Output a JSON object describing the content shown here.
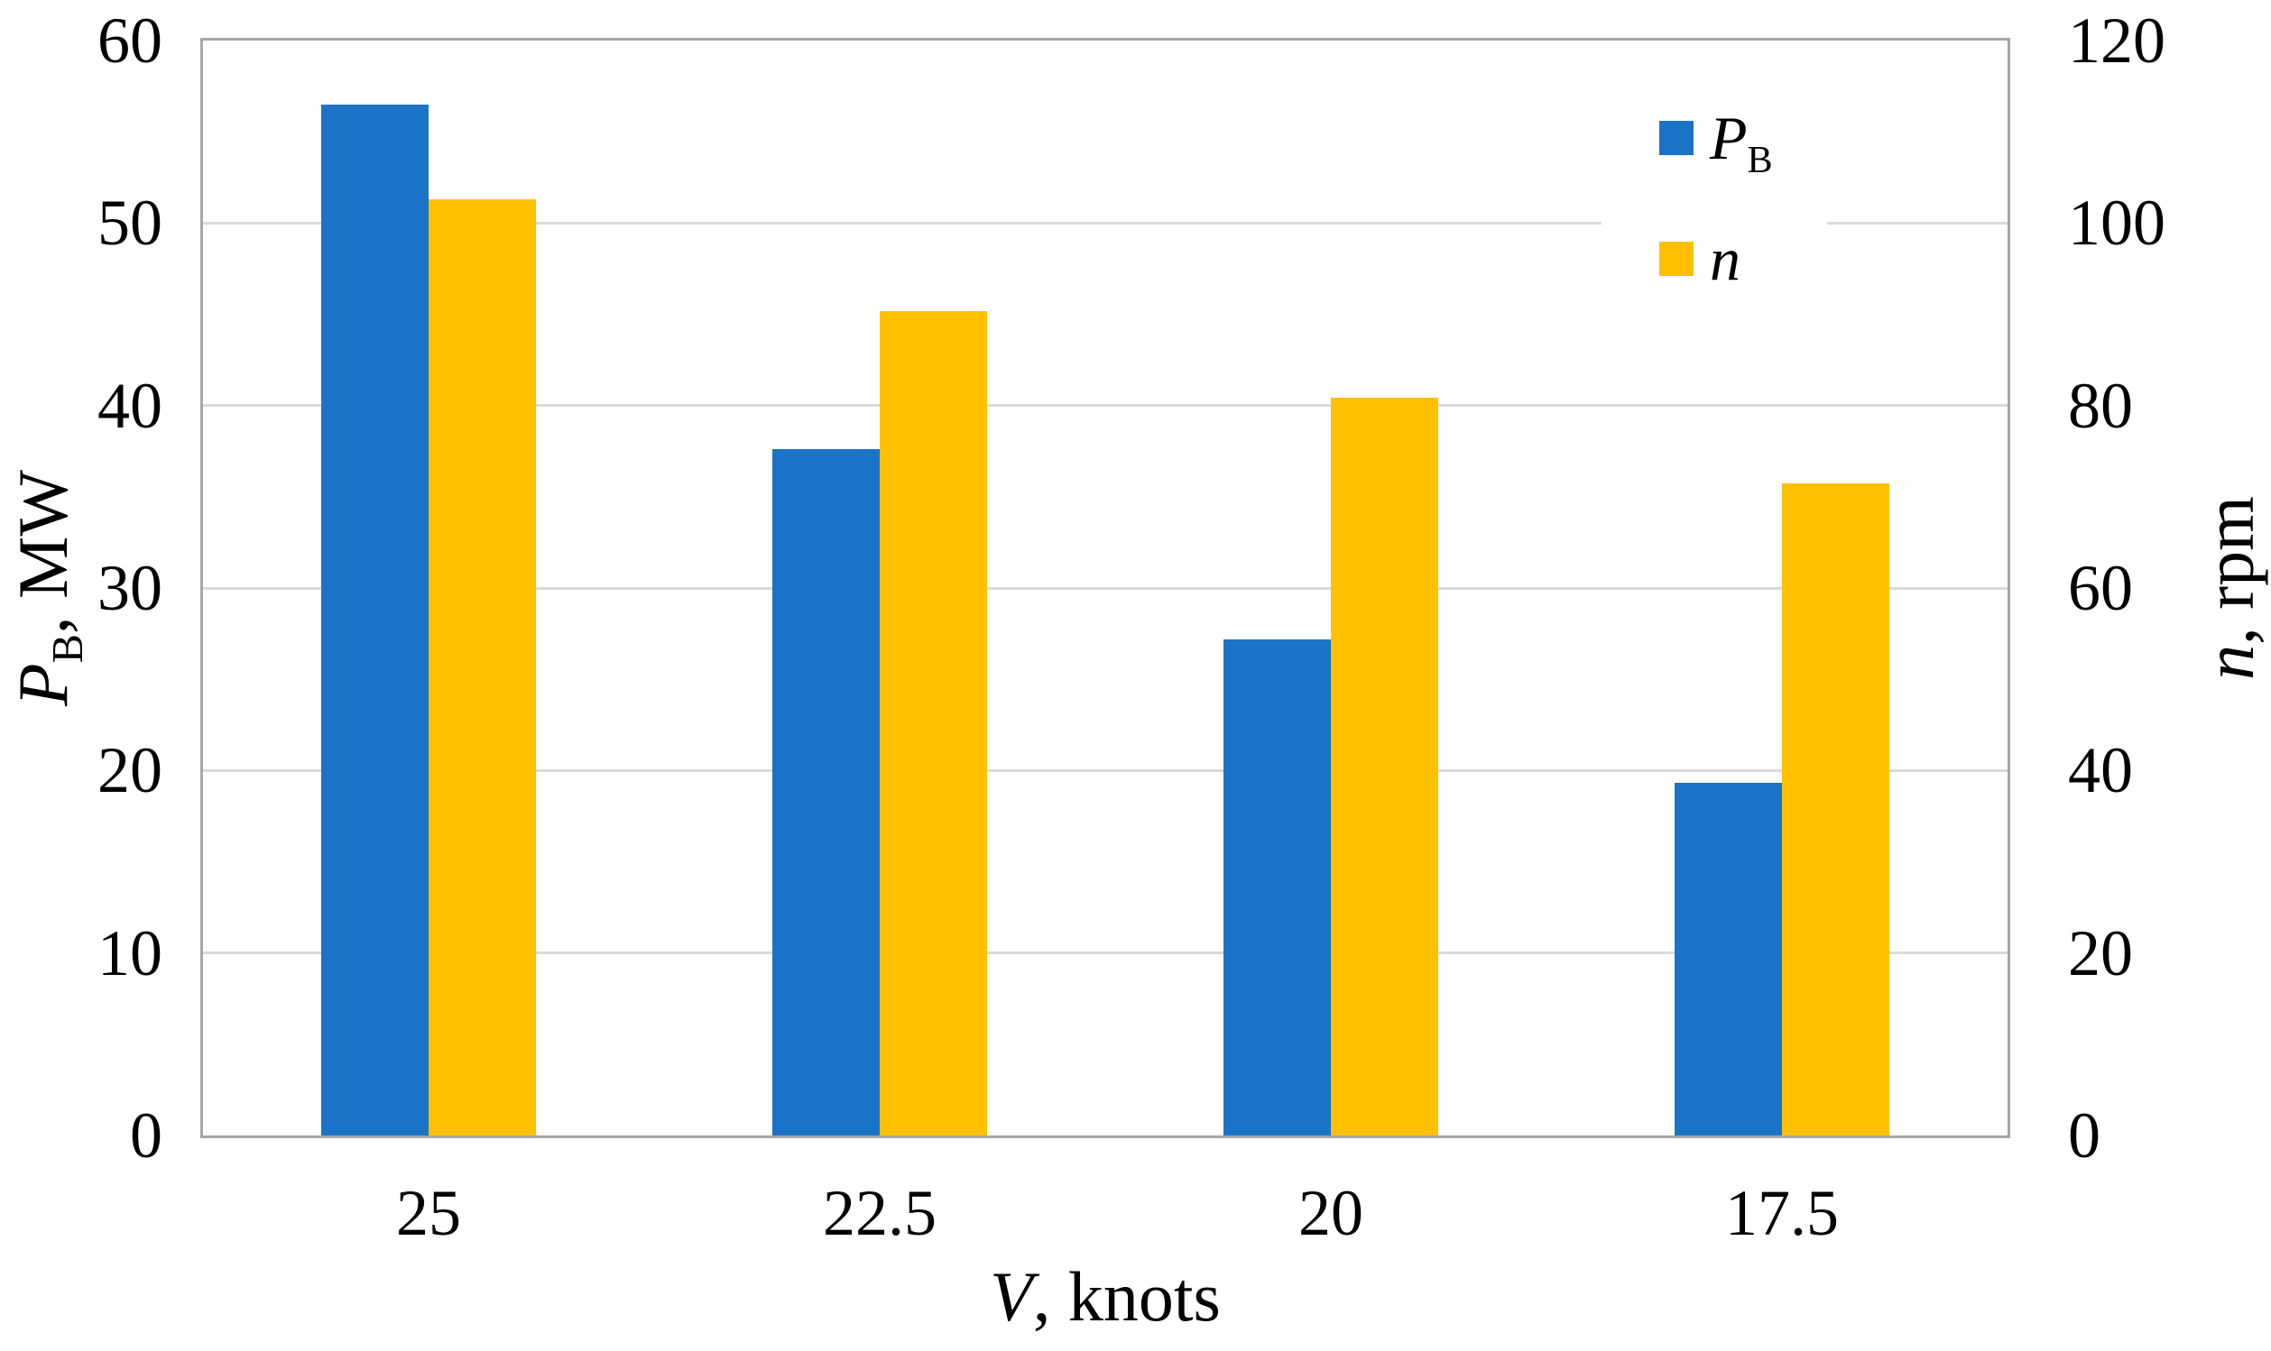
{
  "chart_data": {
    "type": "bar",
    "title": "",
    "categories": [
      "25",
      "22.5",
      "20",
      "17.5"
    ],
    "x_axis": {
      "label": "V, knots"
    },
    "left_axis": {
      "label": "P_B, MW",
      "min": 0,
      "max": 60,
      "ticks": [
        60,
        50,
        40,
        30,
        20,
        10,
        0
      ]
    },
    "right_axis": {
      "label": "n, rpm",
      "min": 0,
      "max": 120,
      "ticks": [
        120,
        100,
        80,
        60,
        40,
        20,
        0
      ]
    },
    "series": [
      {
        "name": "P_B",
        "axis": "left",
        "color": "#1b73c7",
        "values": [
          56.5,
          37.6,
          27.2,
          19.3
        ]
      },
      {
        "name": "n",
        "axis": "right",
        "color": "#ffc000",
        "values": [
          102.6,
          90.3,
          80.9,
          71.5
        ]
      }
    ],
    "grid": true,
    "legend_position": "top-right-inside"
  },
  "labels": {
    "left_title": {
      "p1": "P",
      "sub": "B",
      "p2": ", MW"
    },
    "right_title": {
      "p1": "n",
      "sub": "",
      "p2": ", rpm"
    },
    "x_title": {
      "p1": "V",
      "sub": "",
      "p2": ", knots"
    },
    "legend": [
      {
        "p1": "P",
        "sub": "B"
      },
      {
        "p1": "n",
        "sub": ""
      }
    ]
  },
  "colors": {
    "plot_border": "#a6a6a6",
    "gridline": "#d9d9d9",
    "background": "#ffffff",
    "text": "#000000",
    "series_pb": "#1b73c7",
    "series_n": "#ffc000"
  }
}
